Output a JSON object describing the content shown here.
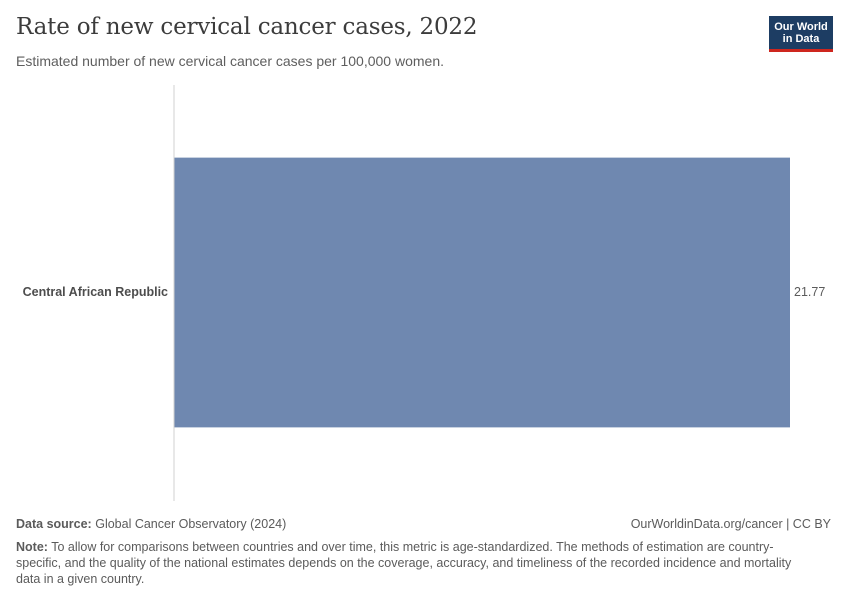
{
  "header": {
    "title": "Rate of new cervical cancer cases, 2022",
    "subtitle": "Estimated number of new cervical cancer cases per 100,000 women."
  },
  "logo": {
    "line1": "Our World",
    "line2": "in Data",
    "bg_color": "#1d3d63",
    "accent_color": "#ce261e"
  },
  "chart_data": {
    "type": "bar",
    "orientation": "horizontal",
    "title": "Rate of new cervical cancer cases, 2022",
    "subtitle": "Estimated number of new cervical cancer cases per 100,000 women.",
    "categories": [
      "Central African Republic"
    ],
    "values": [
      21.77
    ],
    "value_labels": [
      "21.77"
    ],
    "xlim": [
      0,
      21.77
    ],
    "xlabel": "",
    "ylabel": "",
    "grid": false,
    "bar_color": "#6f88b0"
  },
  "footer": {
    "source_label": "Data source:",
    "source_text": "Global Cancer Observatory (2024)",
    "link_text": "OurWorldinData.org/cancer | CC BY",
    "note_label": "Note:",
    "note_text": "To allow for comparisons between countries and over time, this metric is age-standardized. The methods of estimation are country-specific, and the quality of the national estimates depends on the coverage, accuracy, and timeliness of the recorded incidence and mortality data in a given country."
  }
}
